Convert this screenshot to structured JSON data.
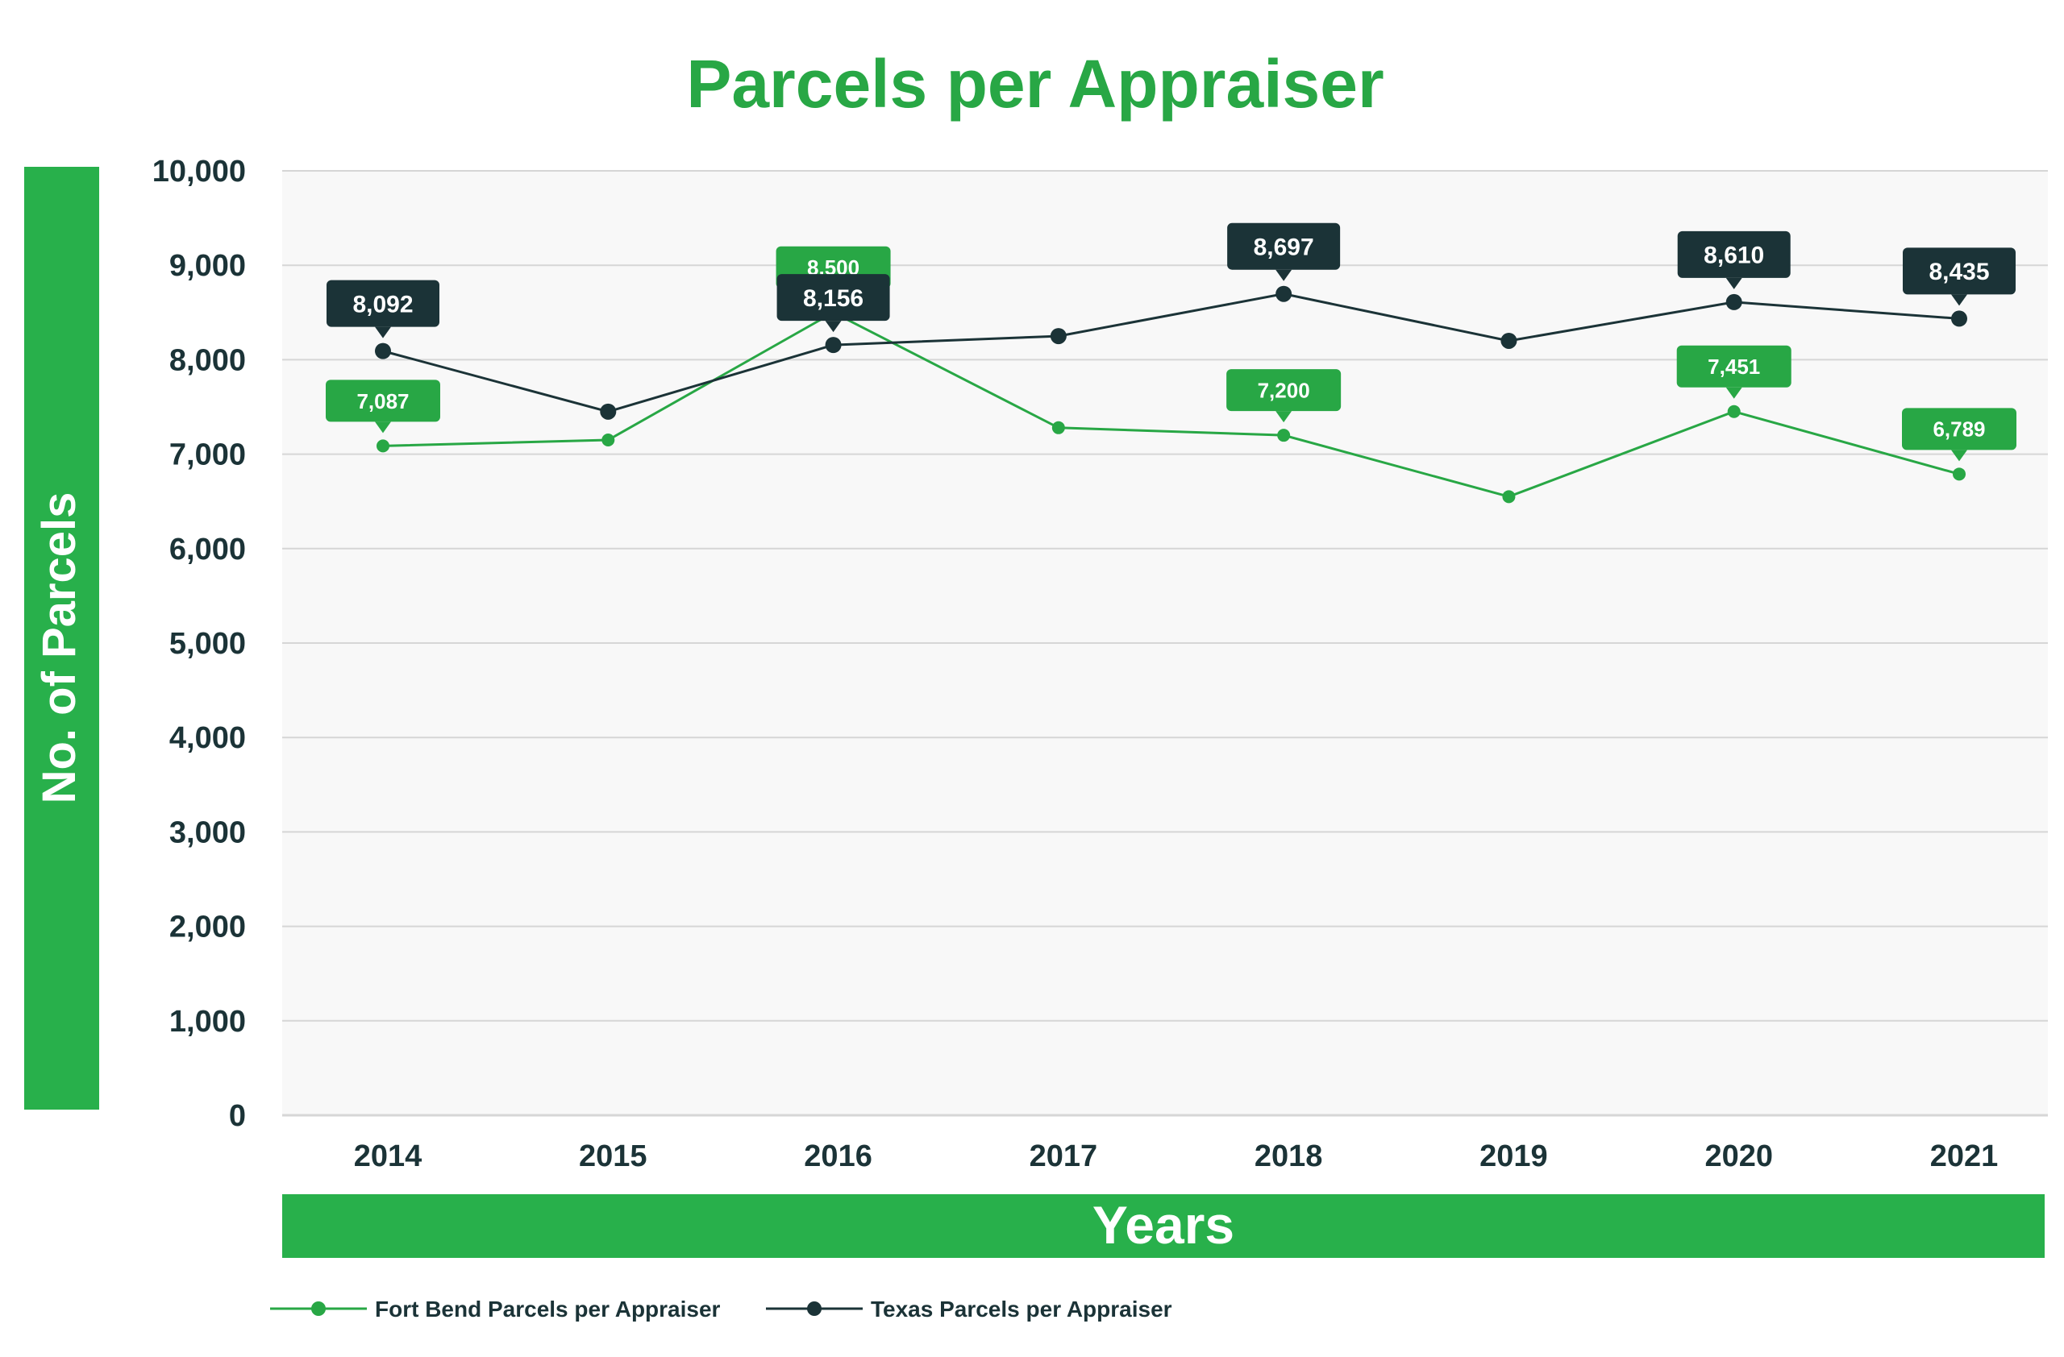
{
  "chart_data": {
    "type": "line",
    "title": "Parcels per Appraiser",
    "xlabel": "Years",
    "ylabel": "No. of Parcels",
    "categories": [
      "2014",
      "2015",
      "2016",
      "2017",
      "2018",
      "2019",
      "2020",
      "2021"
    ],
    "y_ticks": [
      "0",
      "1,000",
      "2,000",
      "3,000",
      "4,000",
      "5,000",
      "6,000",
      "7,000",
      "8,000",
      "9,000",
      "10,000"
    ],
    "ylim": [
      0,
      10000
    ],
    "grid": true,
    "legend_position": "bottom-left",
    "series": [
      {
        "name": "Fort Bend Parcels per Appraiser",
        "color": "#28a745",
        "values": [
          7087,
          7150,
          8500,
          7280,
          7200,
          6550,
          7451,
          6789
        ],
        "labels": [
          "7,087",
          null,
          "8,500",
          null,
          "7,200",
          null,
          "7,451",
          "6,789"
        ]
      },
      {
        "name": "Texas Parcels per Appraiser",
        "color": "#1b3337",
        "values": [
          8092,
          7450,
          8156,
          8250,
          8697,
          8200,
          8610,
          8435
        ],
        "labels": [
          "8,092",
          null,
          "8,156",
          null,
          "8,697",
          null,
          "8,610",
          "8,435"
        ]
      }
    ]
  },
  "colors": {
    "accent": "#28b04b",
    "title": "#28a745",
    "text": "#1b3337",
    "plot_bg": "#f8f8f8",
    "grid": "#d6d6d6"
  }
}
